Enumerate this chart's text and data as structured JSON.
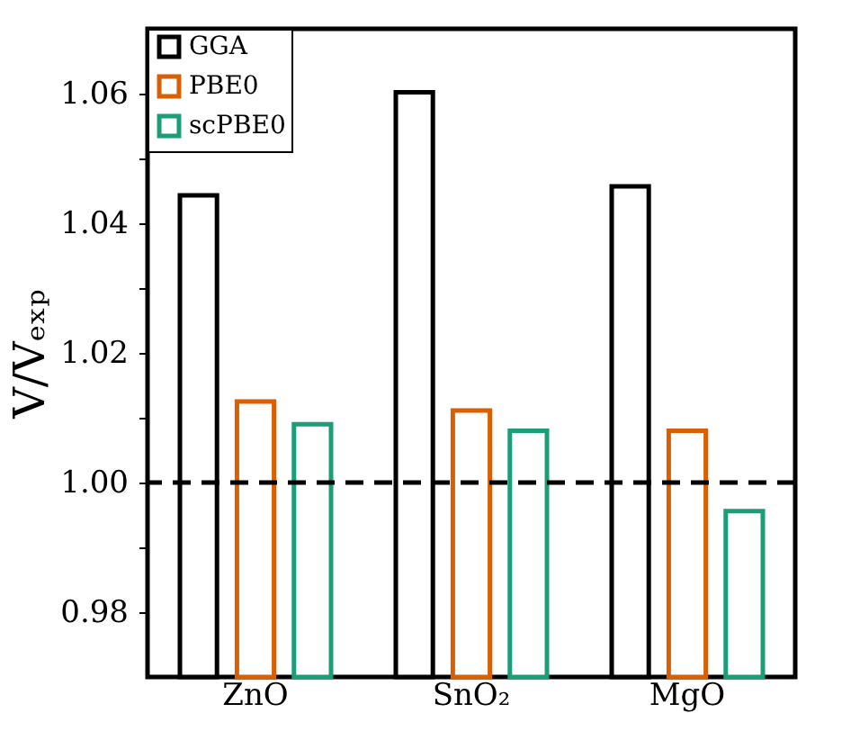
{
  "chart_data": {
    "type": "bar",
    "ylabel": "V/Vₑₓₚ",
    "categories": [
      "ZnO",
      "SnO₂",
      "MgO"
    ],
    "series": [
      {
        "name": "GGA",
        "color": "#000000",
        "values": [
          1.0443,
          1.0602,
          1.0457
        ]
      },
      {
        "name": "PBE0",
        "color": "#d95f02",
        "values": [
          1.0125,
          1.0111,
          1.008
        ]
      },
      {
        "name": "scPBE0",
        "color": "#1b9e77",
        "values": [
          1.009,
          1.008,
          0.9956
        ]
      }
    ],
    "ylim": [
      0.97,
      1.07
    ],
    "yticks": [
      0.98,
      {
        "value": 0.99,
        "label": null
      },
      {
        "value": 1.0,
        "label": "1.00"
      },
      {
        "value": 1.01,
        "label": null
      },
      {
        "value": 1.02,
        "label": "1.02"
      },
      {
        "value": 1.03,
        "label": null
      },
      1.04,
      {
        "value": 1.05,
        "label": null
      },
      1.06
    ],
    "ref_lines": [
      {
        "axis": "y",
        "value": 1.0,
        "color": "#000000",
        "line_style": "dashed"
      }
    ],
    "grid": false,
    "legend": "top left"
  }
}
